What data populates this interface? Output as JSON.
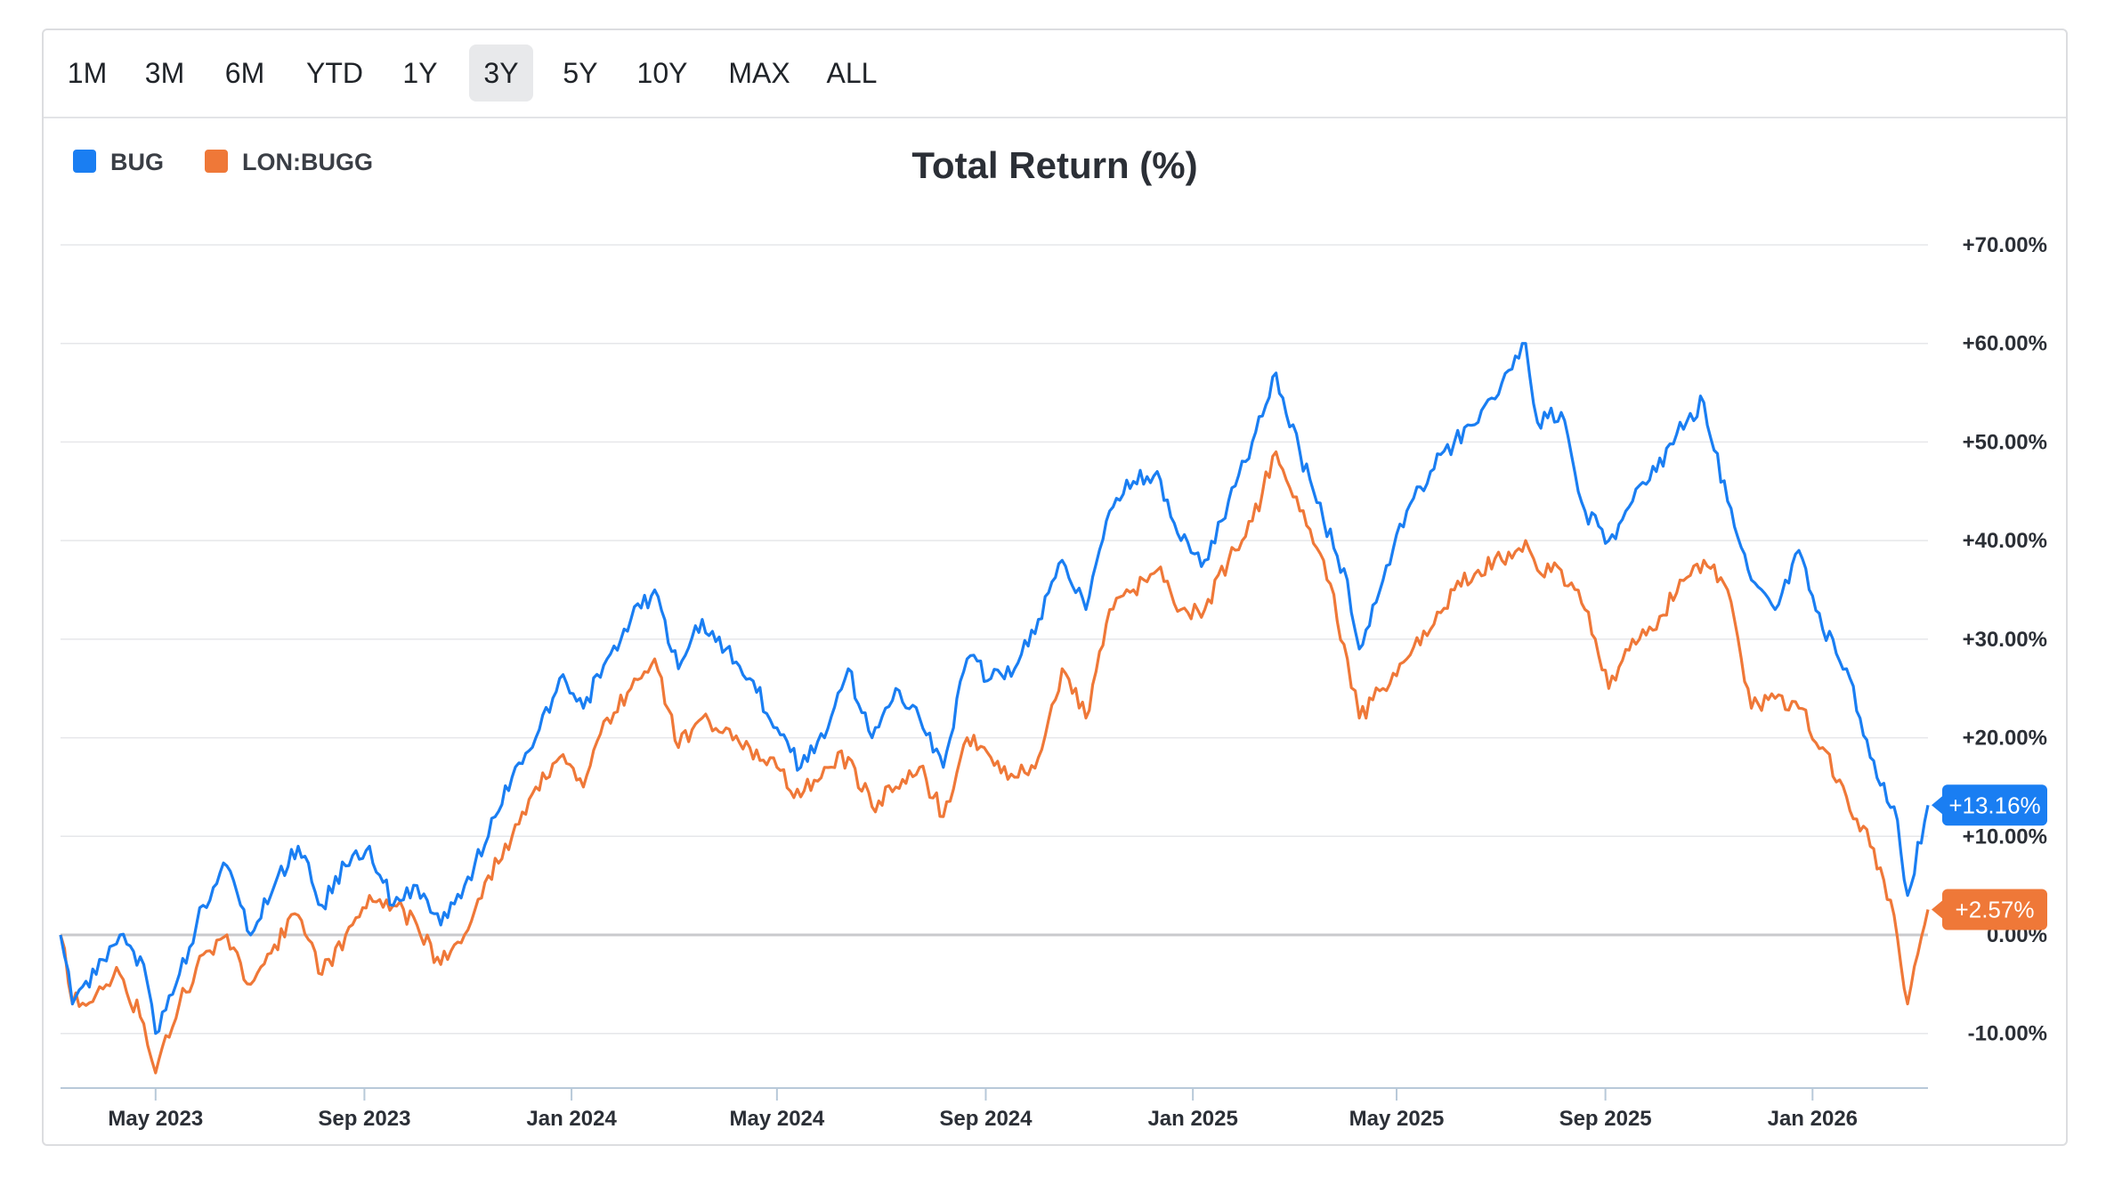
{
  "toolbar": {
    "ranges": [
      "1M",
      "3M",
      "6M",
      "YTD",
      "1Y",
      "3Y",
      "5Y",
      "10Y",
      "MAX",
      "ALL"
    ],
    "active": "3Y"
  },
  "colors": {
    "bug": "#1a7ef2",
    "bugg": "#ef7838",
    "grid": "#e6e7ea",
    "zero": "#c9cacd",
    "axis": "#b8c9d9"
  },
  "chart_data": {
    "type": "line",
    "title": "Total Return (%)",
    "xlabel": "",
    "ylabel": "",
    "ylim": [
      -15,
      75
    ],
    "yticks": [
      -10,
      0,
      10,
      20,
      30,
      40,
      50,
      60,
      70
    ],
    "ytick_labels": [
      "-10.00%",
      "0.00%",
      "+10.00%",
      "+20.00%",
      "+30.00%",
      "+40.00%",
      "+50.00%",
      "+60.00%",
      "+70.00%"
    ],
    "xlim": [
      "2023-03-06",
      "2026-03-10"
    ],
    "xticks": [
      "2023-05-01",
      "2023-09-01",
      "2024-01-01",
      "2024-05-01",
      "2024-09-01",
      "2025-01-01",
      "2025-05-01",
      "2025-09-01",
      "2026-01-01"
    ],
    "xtick_labels": [
      "May 2023",
      "Sep 2023",
      "Jan 2024",
      "May 2024",
      "Sep 2024",
      "Jan 2025",
      "May 2025",
      "Sep 2025",
      "Jan 2026"
    ],
    "legend_position": "top-left",
    "series": [
      {
        "name": "BUG",
        "last_label": "+13.16%",
        "points": [
          [
            "2023-03-06",
            0
          ],
          [
            "2023-03-13",
            -7
          ],
          [
            "2023-03-27",
            -4
          ],
          [
            "2023-04-10",
            0
          ],
          [
            "2023-04-24",
            -3
          ],
          [
            "2023-05-01",
            -10
          ],
          [
            "2023-05-15",
            -4
          ],
          [
            "2023-05-29",
            3
          ],
          [
            "2023-06-12",
            7
          ],
          [
            "2023-06-26",
            0
          ],
          [
            "2023-07-10",
            5
          ],
          [
            "2023-07-24",
            9
          ],
          [
            "2023-08-07",
            3
          ],
          [
            "2023-08-21",
            7
          ],
          [
            "2023-09-04",
            9
          ],
          [
            "2023-09-18",
            3
          ],
          [
            "2023-10-02",
            5
          ],
          [
            "2023-10-16",
            1
          ],
          [
            "2023-10-30",
            5
          ],
          [
            "2023-11-13",
            10
          ],
          [
            "2023-11-27",
            16
          ],
          [
            "2023-12-11",
            20
          ],
          [
            "2023-12-25",
            26
          ],
          [
            "2024-01-08",
            23
          ],
          [
            "2024-01-22",
            28
          ],
          [
            "2024-02-05",
            32
          ],
          [
            "2024-02-19",
            35
          ],
          [
            "2024-03-04",
            27
          ],
          [
            "2024-03-18",
            32
          ],
          [
            "2024-04-01",
            29
          ],
          [
            "2024-04-15",
            26
          ],
          [
            "2024-05-01",
            21
          ],
          [
            "2024-05-15",
            17
          ],
          [
            "2024-05-29",
            20
          ],
          [
            "2024-06-12",
            27
          ],
          [
            "2024-06-26",
            20
          ],
          [
            "2024-07-10",
            25
          ],
          [
            "2024-07-24",
            22
          ],
          [
            "2024-08-07",
            17
          ],
          [
            "2024-08-21",
            28
          ],
          [
            "2024-09-04",
            26
          ],
          [
            "2024-09-18",
            27
          ],
          [
            "2024-10-02",
            32
          ],
          [
            "2024-10-16",
            38
          ],
          [
            "2024-10-30",
            33
          ],
          [
            "2024-11-13",
            43
          ],
          [
            "2024-11-27",
            46
          ],
          [
            "2024-12-11",
            47
          ],
          [
            "2024-12-25",
            40
          ],
          [
            "2025-01-08",
            38
          ],
          [
            "2025-01-22",
            44
          ],
          [
            "2025-02-05",
            50
          ],
          [
            "2025-02-19",
            57
          ],
          [
            "2025-03-05",
            49
          ],
          [
            "2025-03-19",
            42
          ],
          [
            "2025-04-02",
            36
          ],
          [
            "2025-04-09",
            29
          ],
          [
            "2025-04-23",
            36
          ],
          [
            "2025-05-07",
            43
          ],
          [
            "2025-05-21",
            47
          ],
          [
            "2025-06-04",
            50
          ],
          [
            "2025-06-18",
            52
          ],
          [
            "2025-07-02",
            56
          ],
          [
            "2025-07-16",
            60
          ],
          [
            "2025-07-23",
            52
          ],
          [
            "2025-08-06",
            53
          ],
          [
            "2025-08-20",
            43
          ],
          [
            "2025-09-03",
            40
          ],
          [
            "2025-09-17",
            44
          ],
          [
            "2025-10-01",
            47
          ],
          [
            "2025-10-15",
            52
          ],
          [
            "2025-10-29",
            54
          ],
          [
            "2025-11-12",
            44
          ],
          [
            "2025-11-26",
            36
          ],
          [
            "2025-12-10",
            33
          ],
          [
            "2025-12-24",
            39
          ],
          [
            "2026-01-07",
            31
          ],
          [
            "2026-01-21",
            27
          ],
          [
            "2026-02-04",
            18
          ],
          [
            "2026-02-18",
            13
          ],
          [
            "2026-02-26",
            4
          ],
          [
            "2026-03-10",
            13.16
          ]
        ]
      },
      {
        "name": "LON:BUGG",
        "last_label": "+2.57%",
        "points": [
          [
            "2023-03-06",
            0
          ],
          [
            "2023-03-13",
            -7
          ],
          [
            "2023-03-27",
            -6
          ],
          [
            "2023-04-10",
            -4
          ],
          [
            "2023-04-24",
            -9
          ],
          [
            "2023-05-01",
            -14
          ],
          [
            "2023-05-15",
            -7
          ],
          [
            "2023-05-29",
            -2
          ],
          [
            "2023-06-12",
            0
          ],
          [
            "2023-06-26",
            -5
          ],
          [
            "2023-07-10",
            -1
          ],
          [
            "2023-07-24",
            2
          ],
          [
            "2023-08-07",
            -4
          ],
          [
            "2023-08-21",
            0
          ],
          [
            "2023-09-04",
            4
          ],
          [
            "2023-09-18",
            3
          ],
          [
            "2023-10-02",
            1
          ],
          [
            "2023-10-16",
            -3
          ],
          [
            "2023-10-30",
            0
          ],
          [
            "2023-11-13",
            6
          ],
          [
            "2023-11-27",
            10
          ],
          [
            "2023-12-11",
            15
          ],
          [
            "2023-12-25",
            18
          ],
          [
            "2024-01-08",
            15
          ],
          [
            "2024-01-22",
            22
          ],
          [
            "2024-02-05",
            25
          ],
          [
            "2024-02-19",
            28
          ],
          [
            "2024-03-04",
            19
          ],
          [
            "2024-03-18",
            22
          ],
          [
            "2024-04-01",
            21
          ],
          [
            "2024-04-15",
            19
          ],
          [
            "2024-05-01",
            17
          ],
          [
            "2024-05-15",
            14
          ],
          [
            "2024-05-29",
            17
          ],
          [
            "2024-06-12",
            18
          ],
          [
            "2024-06-26",
            13
          ],
          [
            "2024-07-10",
            15
          ],
          [
            "2024-07-24",
            17
          ],
          [
            "2024-08-07",
            12
          ],
          [
            "2024-08-21",
            20
          ],
          [
            "2024-09-04",
            18
          ],
          [
            "2024-09-18",
            16
          ],
          [
            "2024-10-02",
            18
          ],
          [
            "2024-10-16",
            27
          ],
          [
            "2024-10-30",
            22
          ],
          [
            "2024-11-13",
            33
          ],
          [
            "2024-11-27",
            35
          ],
          [
            "2024-12-11",
            37
          ],
          [
            "2024-12-25",
            33
          ],
          [
            "2025-01-08",
            33
          ],
          [
            "2025-01-22",
            38
          ],
          [
            "2025-02-05",
            42
          ],
          [
            "2025-02-19",
            49
          ],
          [
            "2025-03-05",
            43
          ],
          [
            "2025-03-19",
            38
          ],
          [
            "2025-04-02",
            28
          ],
          [
            "2025-04-09",
            22
          ],
          [
            "2025-04-23",
            25
          ],
          [
            "2025-05-07",
            28
          ],
          [
            "2025-05-21",
            31
          ],
          [
            "2025-06-04",
            35
          ],
          [
            "2025-06-18",
            37
          ],
          [
            "2025-07-02",
            38
          ],
          [
            "2025-07-16",
            40
          ],
          [
            "2025-07-23",
            37
          ],
          [
            "2025-08-06",
            37
          ],
          [
            "2025-08-20",
            33
          ],
          [
            "2025-09-03",
            25
          ],
          [
            "2025-09-17",
            30
          ],
          [
            "2025-10-01",
            31
          ],
          [
            "2025-10-15",
            36
          ],
          [
            "2025-10-29",
            38
          ],
          [
            "2025-11-12",
            35
          ],
          [
            "2025-11-26",
            23
          ],
          [
            "2025-12-10",
            24
          ],
          [
            "2025-12-24",
            23
          ],
          [
            "2026-01-07",
            19
          ],
          [
            "2026-01-21",
            14
          ],
          [
            "2026-02-04",
            9
          ],
          [
            "2026-02-18",
            2
          ],
          [
            "2026-02-26",
            -7
          ],
          [
            "2026-03-10",
            2.57
          ]
        ]
      }
    ]
  }
}
